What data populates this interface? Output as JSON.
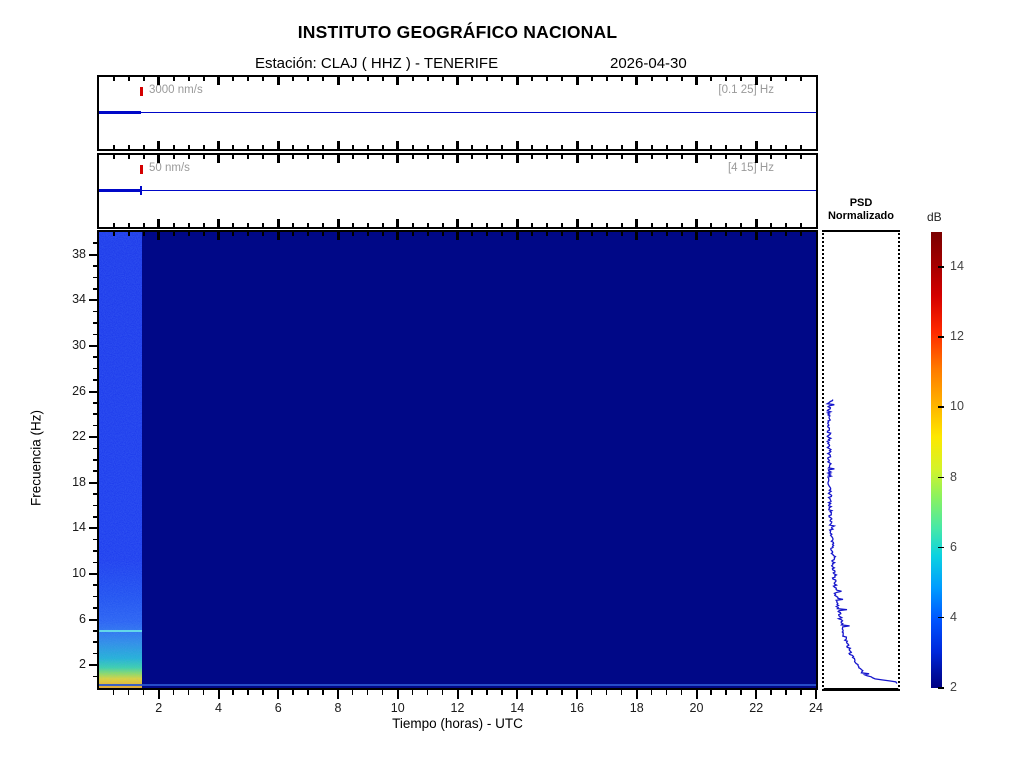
{
  "header": {
    "title": "INSTITUTO GEOGRÁFICO NACIONAL",
    "station": "Estación:  CLAJ ( HHZ ) - TENERIFE",
    "date": "2026-04-30"
  },
  "panels": {
    "broadband": {
      "scale_label": "3000 nm/s",
      "band_label": "[0.1 25] Hz"
    },
    "filtered": {
      "scale_label": "50 nm/s",
      "band_label": "[4 15] Hz"
    }
  },
  "spectrogram_labels": {
    "xlabel": "Tiempo (horas) - UTC",
    "ylabel": "Frecuencia  (Hz)"
  },
  "psd": {
    "title_line1": "PSD",
    "title_line2": "Normalizado"
  },
  "colorbar": {
    "label": "dB"
  },
  "colors": {
    "trace_blue": "#0008c8",
    "scale_marker_red": "#d40000",
    "annotation_gray": "#9a9a9a",
    "spectrogram_background": "#000887",
    "psd_curve_blue": "#1616cc"
  },
  "chart_data": {
    "type": "heatmap",
    "title": "INSTITUTO GEOGRÁFICO NACIONAL",
    "station": "CLAJ ( HHZ ) - TENERIFE",
    "date": "2026-04-30",
    "x": {
      "label": "Tiempo (horas) - UTC",
      "range_hours": [
        0,
        24
      ],
      "tick_labels": [
        2,
        4,
        6,
        8,
        10,
        12,
        14,
        16,
        18,
        20,
        22,
        24
      ],
      "minor_tick_hours": 0.5
    },
    "y": {
      "label": "Frecuencia (Hz)",
      "range_hz": [
        0,
        40
      ],
      "tick_labels": [
        2,
        6,
        10,
        14,
        18,
        22,
        26,
        30,
        34,
        38
      ],
      "minor_tick_hz": 1
    },
    "colorbar": {
      "label": "dB",
      "range_db": [
        2,
        15
      ],
      "ticks": [
        2,
        4,
        6,
        8,
        10,
        12,
        14
      ],
      "colormap": "jet"
    },
    "data_extent_hours": [
      0,
      1.4
    ],
    "background_value_db": 2,
    "features": [
      {
        "type": "horizontal-line",
        "freq_hz": 5,
        "extent_hours": [
          0,
          1.4
        ],
        "note": "narrowband cyan line inside recorded segment"
      },
      {
        "type": "horizontal-line",
        "freq_hz": 0.3,
        "extent_hours": [
          0,
          24
        ],
        "note": "faint low-frequency edge line across full day"
      },
      {
        "type": "gradient",
        "note": "recorded segment: royal blue above ~8 Hz grading to cyan/yellow/orange below 3 Hz"
      }
    ],
    "waveforms": [
      {
        "name": "broadband",
        "scale_label": "3000 nm/s",
        "band_label": "[0.1 25] Hz",
        "data_extent_hours": [
          0,
          1.4
        ],
        "signal": "flat baseline, no visible events"
      },
      {
        "name": "filtered",
        "scale_label": "50 nm/s",
        "band_label": "[4 15] Hz",
        "data_extent_hours": [
          0,
          1.4
        ],
        "signal": "flat baseline with small spike at end of segment"
      }
    ],
    "psd_profile": {
      "x_axis": "normalized PSD (0 = left edge, 1 = right edge)",
      "y_axis": "frequency Hz (shared with spectrogram)",
      "band_hz": [
        0.2,
        25.2
      ],
      "jitter": 0.05,
      "points": [
        [
          25.2,
          0.1
        ],
        [
          25,
          0.05
        ],
        [
          22,
          0.05
        ],
        [
          20,
          0.055
        ],
        [
          18,
          0.06
        ],
        [
          16,
          0.07
        ],
        [
          14,
          0.08
        ],
        [
          12,
          0.095
        ],
        [
          10,
          0.115
        ],
        [
          9,
          0.13
        ],
        [
          8,
          0.15
        ],
        [
          7,
          0.17
        ],
        [
          6,
          0.2
        ],
        [
          5,
          0.24
        ],
        [
          4,
          0.28
        ],
        [
          3.5,
          0.31
        ],
        [
          3,
          0.34
        ],
        [
          2.5,
          0.37
        ],
        [
          2,
          0.41
        ],
        [
          1.7,
          0.44
        ],
        [
          1.4,
          0.47
        ],
        [
          1.1,
          0.51
        ],
        [
          0.9,
          0.56
        ],
        [
          0.7,
          0.63
        ],
        [
          0.55,
          0.7
        ],
        [
          0.45,
          0.78
        ],
        [
          0.35,
          0.88
        ],
        [
          0.28,
          0.95
        ],
        [
          0.22,
          1.0
        ]
      ]
    }
  }
}
